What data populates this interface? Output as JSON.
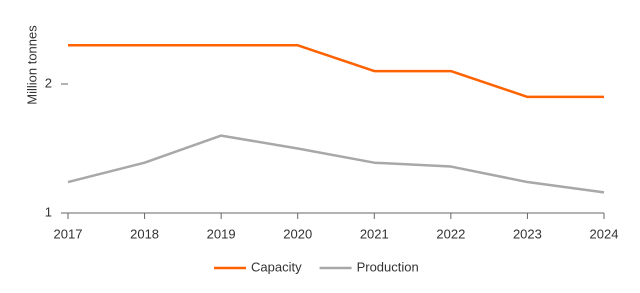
{
  "chart_data": {
    "type": "line",
    "y_label": "Million tonnes",
    "categories": [
      "2017",
      "2018",
      "2019",
      "2020",
      "2021",
      "2022",
      "2023",
      "2024"
    ],
    "series": [
      {
        "name": "Capacity",
        "color": "#ff6200",
        "values": [
          2.3,
          2.3,
          2.3,
          2.3,
          2.1,
          2.1,
          1.9,
          1.9
        ]
      },
      {
        "name": "Production",
        "color": "#a8a8a8",
        "values": [
          1.24,
          1.39,
          1.6,
          1.5,
          1.39,
          1.36,
          1.24,
          1.16
        ]
      }
    ],
    "ylim": [
      1,
      2.5
    ],
    "yticks": [
      1,
      2
    ],
    "grid": false,
    "legend": "bottom"
  }
}
